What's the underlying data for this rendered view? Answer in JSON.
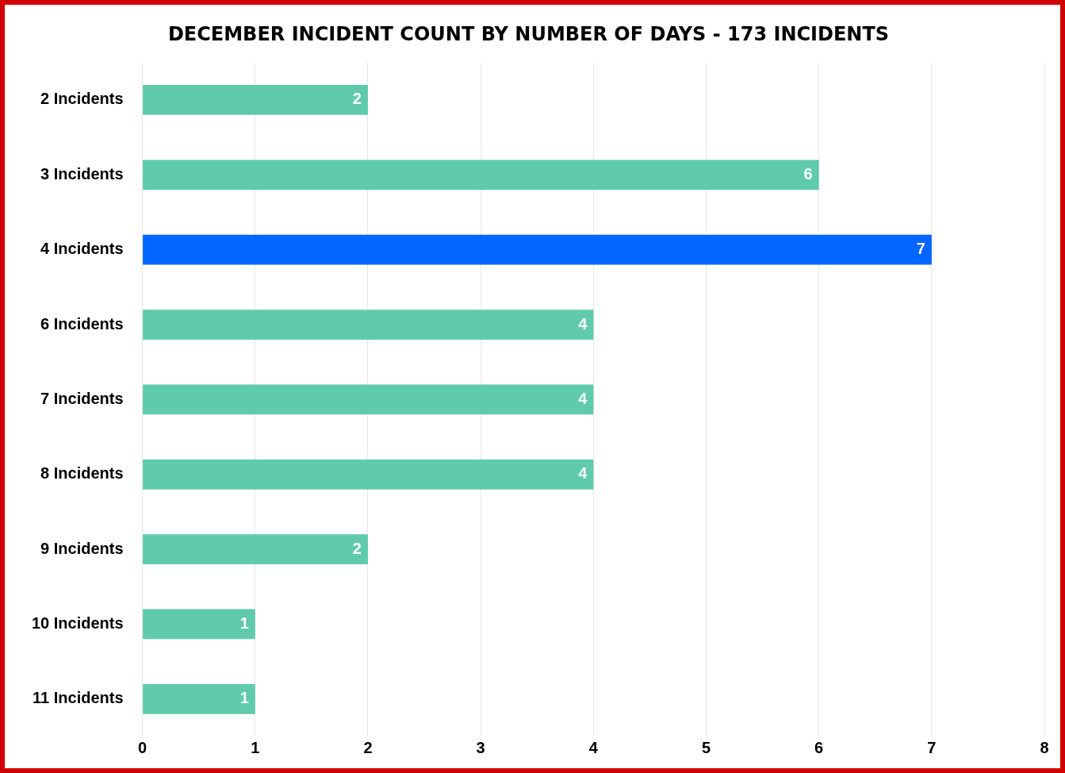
{
  "chart_data": {
    "type": "bar",
    "orientation": "horizontal",
    "title": "DECEMBER INCIDENT COUNT BY NUMBER OF DAYS - 173 INCIDENTS",
    "categories": [
      "2 Incidents",
      "3 Incidents",
      "4 Incidents",
      "6 Incidents",
      "7 Incidents",
      "8 Incidents",
      "9 Incidents",
      "10 Incidents",
      "11 Incidents"
    ],
    "values": [
      2,
      6,
      7,
      4,
      4,
      4,
      2,
      1,
      1
    ],
    "colors": [
      "#5fcbab",
      "#5fcbab",
      "#0066ff",
      "#5fcbab",
      "#5fcbab",
      "#5fcbab",
      "#5fcbab",
      "#5fcbab",
      "#5fcbab"
    ],
    "xlim": [
      0,
      8
    ],
    "xticks": [
      0,
      1,
      2,
      3,
      4,
      5,
      6,
      7,
      8
    ],
    "grid": "x",
    "data_labels": true
  }
}
